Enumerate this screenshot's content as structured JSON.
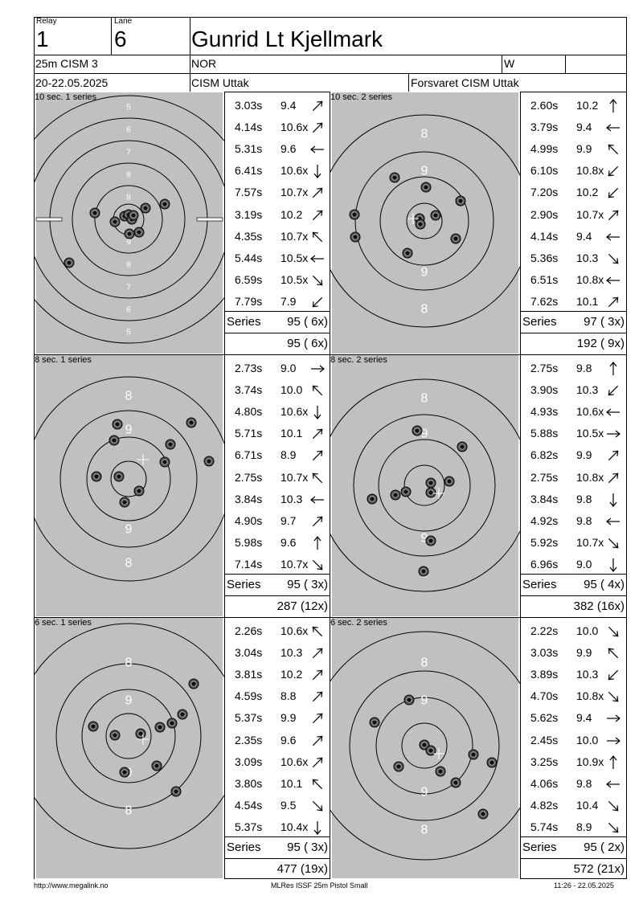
{
  "header": {
    "relay_label": "Relay",
    "relay_value": "1",
    "lane_label": "Lane",
    "lane_value": "6",
    "shooter_name": "Gunrid Lt Kjellmark",
    "event": "25m CISM 3",
    "nation": "NOR",
    "gender": "W",
    "date": "20-22.05.2025",
    "competition": "CISM Uttak",
    "organizer": "Forsvaret CISM Uttak"
  },
  "panels": [
    {
      "title": "10 sec. 1 series",
      "ring_labels": [
        "5",
        "6",
        "7",
        "8",
        "9"
      ],
      "shots": [
        {
          "time": "3.03s",
          "value": "9.4",
          "dir": "ne"
        },
        {
          "time": "4.14s",
          "value": "10.6x",
          "dir": "ne"
        },
        {
          "time": "5.31s",
          "value": "9.6",
          "dir": "w"
        },
        {
          "time": "6.41s",
          "value": "10.6x",
          "dir": "s"
        },
        {
          "time": "7.57s",
          "value": "10.7x",
          "dir": "ne"
        },
        {
          "time": "3.19s",
          "value": "10.2",
          "dir": "ne"
        },
        {
          "time": "4.35s",
          "value": "10.7x",
          "dir": "nw"
        },
        {
          "time": "5.44s",
          "value": "10.5x",
          "dir": "w"
        },
        {
          "time": "6.59s",
          "value": "10.5x",
          "dir": "se"
        },
        {
          "time": "7.79s",
          "value": "7.9",
          "dir": "sw"
        }
      ],
      "series_label": "Series",
      "series_score": "95 ( 6x)",
      "cumulative": "95 ( 6x)"
    },
    {
      "title": "10 sec. 2 series",
      "ring_labels": [
        "8",
        "9"
      ],
      "shots": [
        {
          "time": "2.60s",
          "value": "10.2",
          "dir": "n"
        },
        {
          "time": "3.79s",
          "value": "9.4",
          "dir": "w"
        },
        {
          "time": "4.99s",
          "value": "9.9",
          "dir": "nw"
        },
        {
          "time": "6.10s",
          "value": "10.8x",
          "dir": "sw"
        },
        {
          "time": "7.20s",
          "value": "10.2",
          "dir": "sw"
        },
        {
          "time": "2.90s",
          "value": "10.7x",
          "dir": "ne"
        },
        {
          "time": "4.14s",
          "value": "9.4",
          "dir": "w"
        },
        {
          "time": "5.36s",
          "value": "10.3",
          "dir": "se"
        },
        {
          "time": "6.51s",
          "value": "10.8x",
          "dir": "w"
        },
        {
          "time": "7.62s",
          "value": "10.1",
          "dir": "ne"
        }
      ],
      "series_label": "Series",
      "series_score": "97 ( 3x)",
      "cumulative": "192 ( 9x)"
    },
    {
      "title": "8 sec. 1 series",
      "ring_labels": [
        "8",
        "9"
      ],
      "shots": [
        {
          "time": "2.73s",
          "value": "9.0",
          "dir": "e"
        },
        {
          "time": "3.74s",
          "value": "10.0",
          "dir": "nw"
        },
        {
          "time": "4.80s",
          "value": "10.6x",
          "dir": "s"
        },
        {
          "time": "5.71s",
          "value": "10.1",
          "dir": "ne"
        },
        {
          "time": "6.71s",
          "value": "8.9",
          "dir": "ne"
        },
        {
          "time": "2.75s",
          "value": "10.7x",
          "dir": "nw"
        },
        {
          "time": "3.84s",
          "value": "10.3",
          "dir": "w"
        },
        {
          "time": "4.90s",
          "value": "9.7",
          "dir": "ne"
        },
        {
          "time": "5.98s",
          "value": "9.6",
          "dir": "n"
        },
        {
          "time": "7.14s",
          "value": "10.7x",
          "dir": "se"
        }
      ],
      "series_label": "Series",
      "series_score": "95 ( 3x)",
      "cumulative": "287 (12x)"
    },
    {
      "title": "8 sec. 2 series",
      "ring_labels": [
        "8",
        "9"
      ],
      "shots": [
        {
          "time": "2.75s",
          "value": "9.8",
          "dir": "n"
        },
        {
          "time": "3.90s",
          "value": "10.3",
          "dir": "sw"
        },
        {
          "time": "4.93s",
          "value": "10.6x",
          "dir": "w"
        },
        {
          "time": "5.88s",
          "value": "10.5x",
          "dir": "e"
        },
        {
          "time": "6.82s",
          "value": "9.9",
          "dir": "ne"
        },
        {
          "time": "2.75s",
          "value": "10.8x",
          "dir": "ne"
        },
        {
          "time": "3.84s",
          "value": "9.8",
          "dir": "s"
        },
        {
          "time": "4.92s",
          "value": "9.8",
          "dir": "w"
        },
        {
          "time": "5.92s",
          "value": "10.7x",
          "dir": "se"
        },
        {
          "time": "6.96s",
          "value": "9.0",
          "dir": "s"
        }
      ],
      "series_label": "Series",
      "series_score": "95 ( 4x)",
      "cumulative": "382 (16x)"
    },
    {
      "title": "6 sec. 1 series",
      "ring_labels": [
        "8",
        "9"
      ],
      "shots": [
        {
          "time": "2.26s",
          "value": "10.6x",
          "dir": "nw"
        },
        {
          "time": "3.04s",
          "value": "10.3",
          "dir": "ne"
        },
        {
          "time": "3.81s",
          "value": "10.2",
          "dir": "ne"
        },
        {
          "time": "4.59s",
          "value": "8.8",
          "dir": "ne"
        },
        {
          "time": "5.37s",
          "value": "9.9",
          "dir": "ne"
        },
        {
          "time": "2.35s",
          "value": "9.6",
          "dir": "ne"
        },
        {
          "time": "3.09s",
          "value": "10.6x",
          "dir": "ne"
        },
        {
          "time": "3.80s",
          "value": "10.1",
          "dir": "nw"
        },
        {
          "time": "4.54s",
          "value": "9.5",
          "dir": "se"
        },
        {
          "time": "5.37s",
          "value": "10.4x",
          "dir": "s"
        }
      ],
      "series_label": "Series",
      "series_score": "95 ( 3x)",
      "cumulative": "477 (19x)"
    },
    {
      "title": "6 sec. 2 series",
      "ring_labels": [
        "8",
        "9"
      ],
      "shots": [
        {
          "time": "2.22s",
          "value": "10.0",
          "dir": "se"
        },
        {
          "time": "3.03s",
          "value": "9.9",
          "dir": "nw"
        },
        {
          "time": "3.89s",
          "value": "10.3",
          "dir": "sw"
        },
        {
          "time": "4.70s",
          "value": "10.8x",
          "dir": "se"
        },
        {
          "time": "5.62s",
          "value": "9.4",
          "dir": "e"
        },
        {
          "time": "2.45s",
          "value": "10.0",
          "dir": "e"
        },
        {
          "time": "3.25s",
          "value": "10.9x",
          "dir": "n"
        },
        {
          "time": "4.06s",
          "value": "9.8",
          "dir": "w"
        },
        {
          "time": "4.82s",
          "value": "10.4",
          "dir": "se"
        },
        {
          "time": "5.74s",
          "value": "8.9",
          "dir": "se"
        }
      ],
      "series_label": "Series",
      "series_score": "95 ( 2x)",
      "cumulative": "572 (21x)"
    }
  ],
  "footer": {
    "url": "http://www.megalink.no",
    "software": "MLRes ISSF 25m Pistol Small",
    "timestamp": "11:26 - 22.05.2025"
  }
}
